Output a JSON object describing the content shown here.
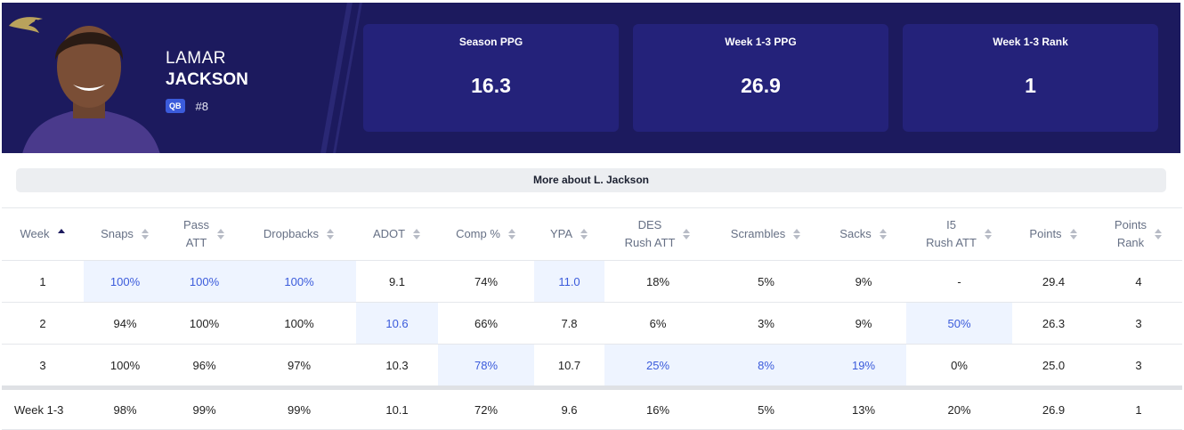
{
  "header": {
    "first_name": "LAMAR",
    "last_name": "JACKSON",
    "position": "QB",
    "number": "#8"
  },
  "cards": [
    {
      "label": "Season PPG",
      "value": "16.3"
    },
    {
      "label": "Week 1-3 PPG",
      "value": "26.9"
    },
    {
      "label": "Week 1-3 Rank",
      "value": "1"
    }
  ],
  "button": {
    "label": "More about L. Jackson"
  },
  "table": {
    "columns": [
      [
        "Week"
      ],
      [
        "Snaps"
      ],
      [
        "Pass",
        "ATT"
      ],
      [
        "Dropbacks"
      ],
      [
        "ADOT"
      ],
      [
        "Comp %"
      ],
      [
        "YPA"
      ],
      [
        "DES",
        "Rush ATT"
      ],
      [
        "Scrambles"
      ],
      [
        "Sacks"
      ],
      [
        "I5",
        "Rush ATT"
      ],
      [
        "Points"
      ],
      [
        "Points",
        "Rank"
      ]
    ],
    "sorted_column": 0,
    "rows": [
      {
        "cells": [
          "1",
          "100%",
          "100%",
          "100%",
          "9.1",
          "74%",
          "11.0",
          "18%",
          "5%",
          "9%",
          "-",
          "29.4",
          "4"
        ],
        "highlight": [
          1,
          2,
          3,
          6
        ]
      },
      {
        "cells": [
          "2",
          "94%",
          "100%",
          "100%",
          "10.6",
          "66%",
          "7.8",
          "6%",
          "3%",
          "9%",
          "50%",
          "26.3",
          "3"
        ],
        "highlight": [
          4,
          10
        ]
      },
      {
        "cells": [
          "3",
          "100%",
          "96%",
          "97%",
          "10.3",
          "78%",
          "10.7",
          "25%",
          "8%",
          "19%",
          "0%",
          "25.0",
          "3"
        ],
        "highlight": [
          5,
          7,
          8,
          9
        ]
      }
    ],
    "summary": [
      "Week 1-3",
      "98%",
      "99%",
      "99%",
      "10.1",
      "72%",
      "9.6",
      "16%",
      "5%",
      "13%",
      "20%",
      "26.9",
      "1"
    ]
  }
}
